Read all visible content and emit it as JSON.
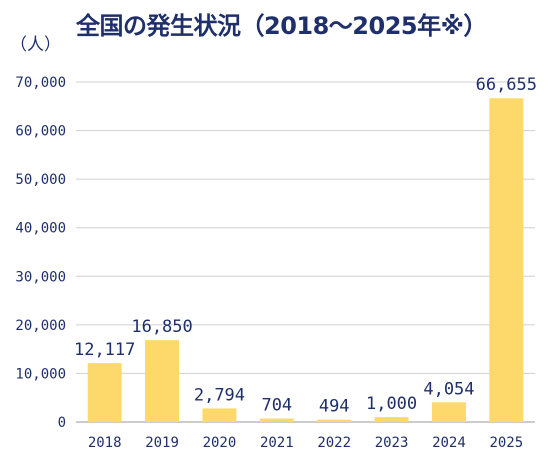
{
  "header": {
    "title": "全国の発生状況（2018～2025年※）",
    "unit": "（人）"
  },
  "colors": {
    "bar": "#fdd96b",
    "text": "#1f2f6b",
    "grid": "#d0d0d0"
  },
  "chart_data": {
    "type": "bar",
    "title": "全国の発生状況（2018～2025年※）",
    "ylabel": "（人）",
    "xlabel": "",
    "categories": [
      "2018",
      "2019",
      "2020",
      "2021",
      "2022",
      "2023",
      "2024",
      "2025"
    ],
    "values": [
      12117,
      16850,
      2794,
      704,
      494,
      1000,
      4054,
      66655
    ],
    "value_labels": [
      "12,117",
      "16,850",
      "2,794",
      "704",
      "494",
      "1,000",
      "4,054",
      "66,655"
    ],
    "ylim": [
      0,
      70000
    ],
    "yticks": [
      0,
      10000,
      20000,
      30000,
      40000,
      50000,
      60000,
      70000
    ],
    "ytick_labels": [
      "0",
      "10,000",
      "20,000",
      "30,000",
      "40,000",
      "50,000",
      "60,000",
      "70,000"
    ],
    "grid": true,
    "legend": "none"
  }
}
